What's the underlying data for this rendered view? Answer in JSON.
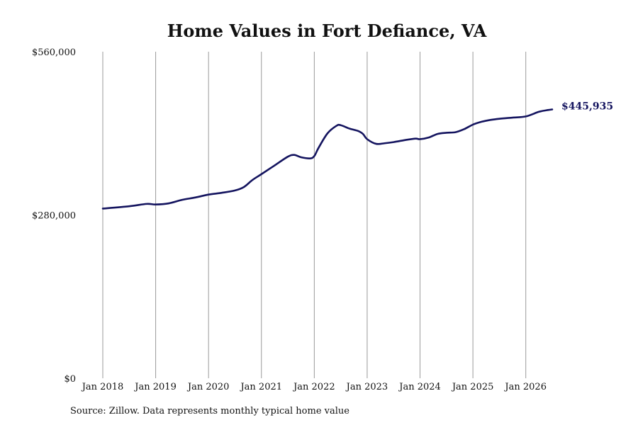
{
  "chart_data": {
    "type": "line",
    "title": "Home Values in Fort Defiance, VA",
    "xlabel": "",
    "ylabel": "",
    "source": "Source: Zillow. Data represents monthly typical home value",
    "y_ticks": [
      {
        "value": 560000,
        "label": "$560,000"
      },
      {
        "value": 280000,
        "label": "$280,000"
      },
      {
        "value": 0,
        "label": "$0"
      }
    ],
    "ylim": [
      0,
      560000
    ],
    "xlim": [
      2018.0,
      2026.5
    ],
    "x_ticks": [
      {
        "value": 2018,
        "label": "Jan 2018"
      },
      {
        "value": 2019,
        "label": "Jan 2019"
      },
      {
        "value": 2020,
        "label": "Jan 2020"
      },
      {
        "value": 2021,
        "label": "Jan 2021"
      },
      {
        "value": 2022,
        "label": "Jan 2022"
      },
      {
        "value": 2023,
        "label": "Jan 2023"
      },
      {
        "value": 2024,
        "label": "Jan 2024"
      },
      {
        "value": 2025,
        "label": "Jan 2025"
      },
      {
        "value": 2026,
        "label": "Jan 2026"
      }
    ],
    "grid": {
      "vertical": true,
      "horizontal": false
    },
    "line_color": "#14145f",
    "grid_color": "#999999",
    "series": [
      {
        "end_label": "$445,935",
        "points": [
          [
            2018.0,
            291000
          ],
          [
            2018.5,
            295000
          ],
          [
            2018.83,
            299000
          ],
          [
            2019.0,
            298000
          ],
          [
            2019.25,
            300000
          ],
          [
            2019.5,
            306000
          ],
          [
            2019.75,
            310000
          ],
          [
            2020.0,
            315000
          ],
          [
            2020.25,
            318000
          ],
          [
            2020.5,
            322000
          ],
          [
            2020.67,
            328000
          ],
          [
            2020.83,
            340000
          ],
          [
            2021.0,
            350000
          ],
          [
            2021.25,
            365000
          ],
          [
            2021.5,
            380000
          ],
          [
            2021.62,
            383000
          ],
          [
            2021.75,
            379000
          ],
          [
            2021.92,
            377000
          ],
          [
            2022.0,
            381000
          ],
          [
            2022.08,
            395000
          ],
          [
            2022.25,
            420000
          ],
          [
            2022.42,
            433000
          ],
          [
            2022.5,
            434000
          ],
          [
            2022.67,
            428000
          ],
          [
            2022.83,
            424000
          ],
          [
            2022.92,
            419000
          ],
          [
            2023.0,
            410000
          ],
          [
            2023.17,
            402000
          ],
          [
            2023.33,
            403000
          ],
          [
            2023.5,
            405000
          ],
          [
            2023.75,
            409000
          ],
          [
            2023.92,
            411000
          ],
          [
            2024.0,
            410000
          ],
          [
            2024.17,
            413000
          ],
          [
            2024.33,
            419000
          ],
          [
            2024.5,
            421000
          ],
          [
            2024.67,
            422000
          ],
          [
            2024.83,
            427000
          ],
          [
            2025.0,
            435000
          ],
          [
            2025.17,
            440000
          ],
          [
            2025.33,
            443000
          ],
          [
            2025.5,
            445000
          ],
          [
            2025.75,
            447000
          ],
          [
            2026.0,
            449000
          ],
          [
            2026.25,
            457000
          ],
          [
            2026.42,
            460000
          ],
          [
            2026.5,
            461000
          ]
        ]
      }
    ]
  }
}
